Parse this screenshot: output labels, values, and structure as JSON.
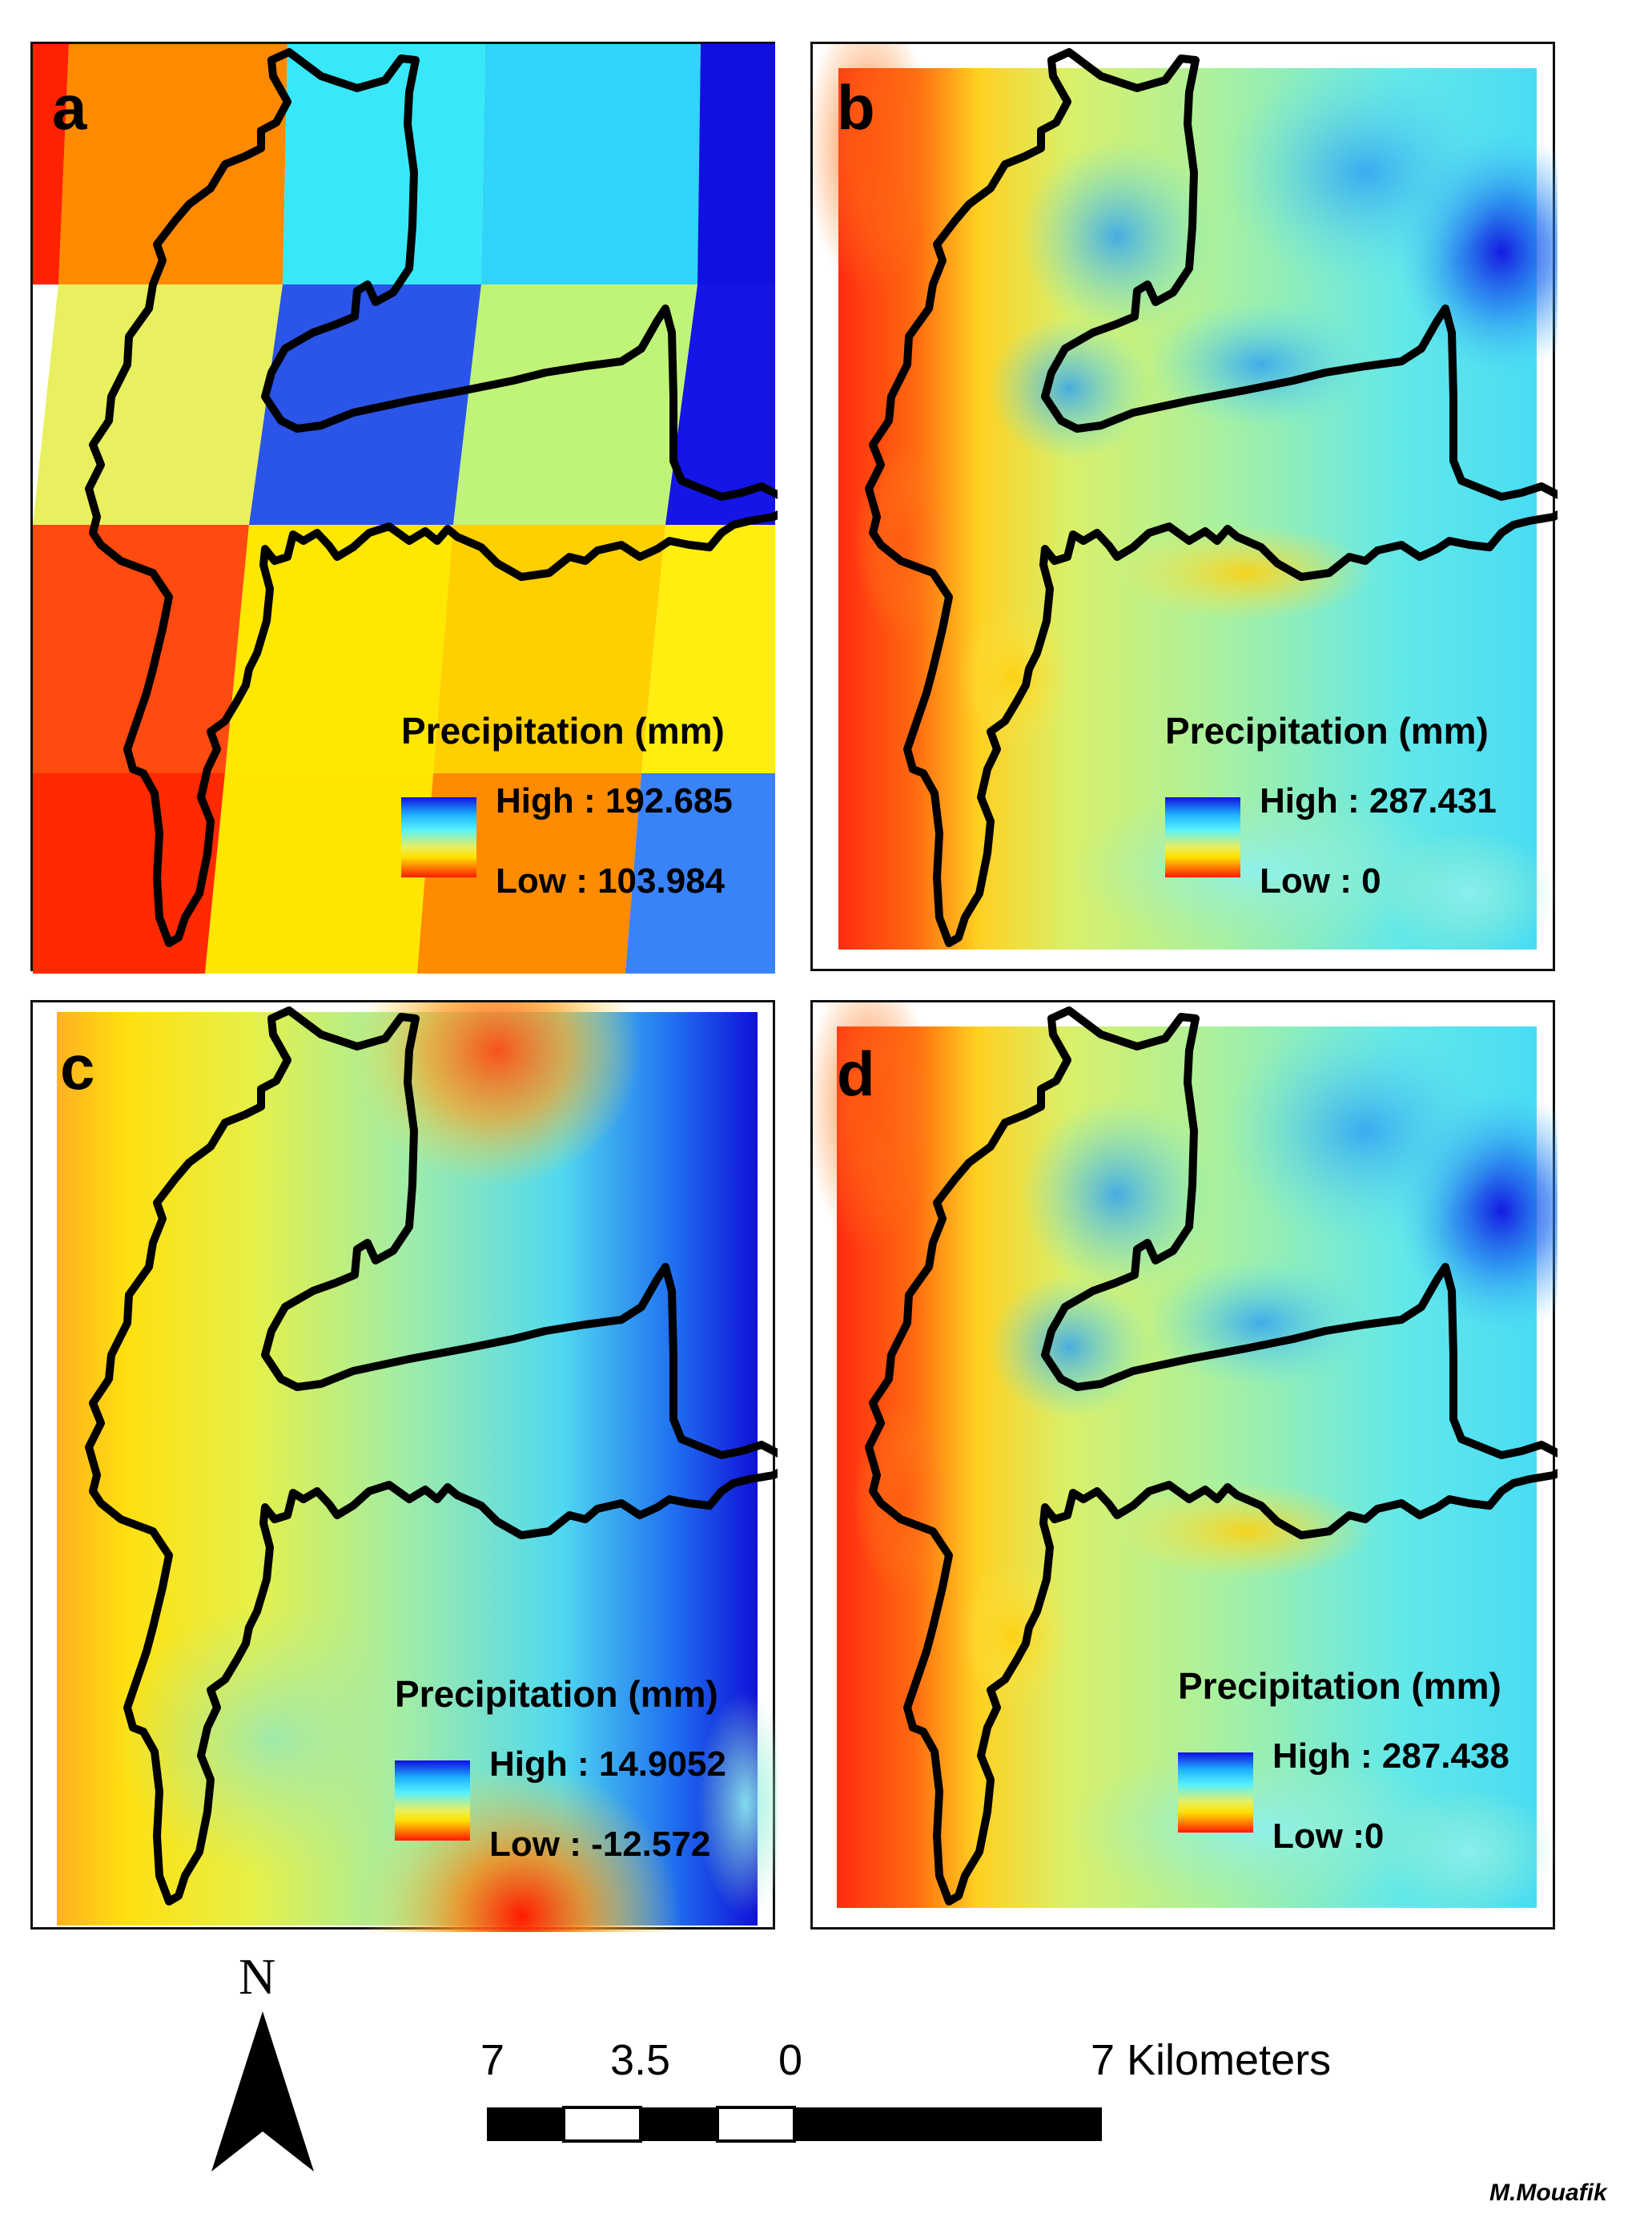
{
  "panels": [
    {
      "id": "a",
      "label": "a",
      "legend_title": "Precipitation (mm)",
      "high": "High : 192.685",
      "low": "Low : 103.984"
    },
    {
      "id": "b",
      "label": "b",
      "legend_title": "Precipitation (mm)",
      "high": "High : 287.431",
      "low": "Low : 0"
    },
    {
      "id": "c",
      "label": "c",
      "legend_title": "Precipitation (mm)",
      "high": "High : 14.9052",
      "low": "Low : -12.572"
    },
    {
      "id": "d",
      "label": "d",
      "legend_title": "Precipitation (mm)",
      "high": "High : 287.438",
      "low": "Low :0"
    }
  ],
  "north_label": "N",
  "scale": {
    "ticks": [
      "7",
      "3.5",
      "0",
      "7 Kilometers"
    ]
  },
  "author": "M.Mouafik",
  "colors": {
    "high": "#1010e0",
    "mid": "#ffe000",
    "low": "#ff1a00",
    "boundary": "#000000"
  }
}
